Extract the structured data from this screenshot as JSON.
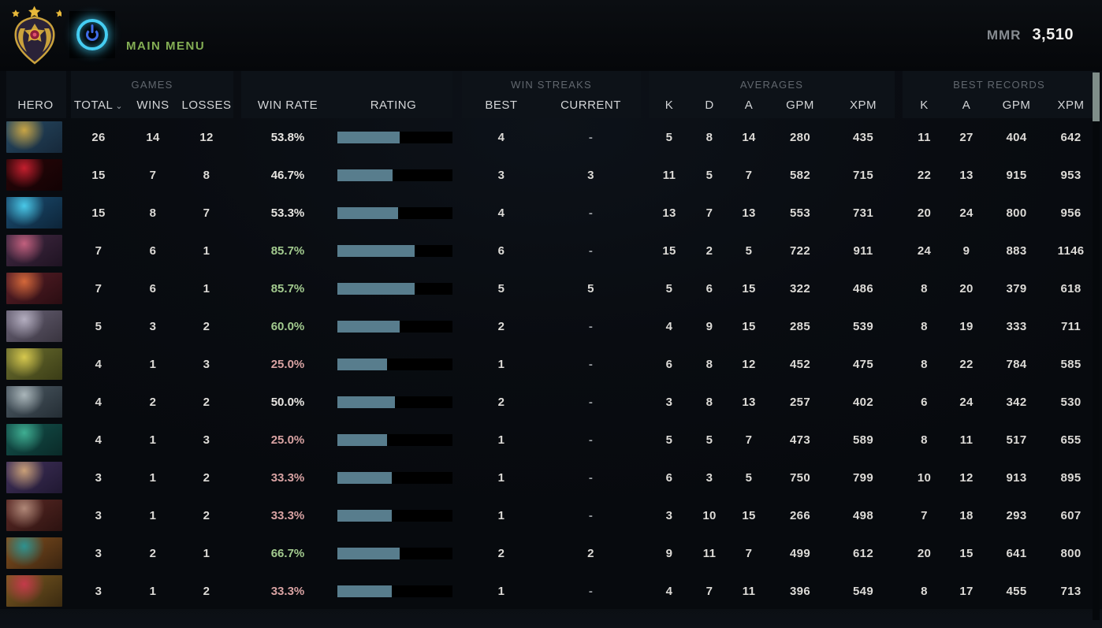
{
  "header": {
    "main_menu_label": "MAIN MENU",
    "mmr_label": "MMR",
    "mmr_value": "3,510",
    "accent_green": "#84ae54",
    "power_ring_color": "#45cdf2",
    "power_glyph_color": "#3f6ce8"
  },
  "table": {
    "hero_column_label": "HERO",
    "groups": {
      "games": {
        "label": "GAMES",
        "col_total": "TOTAL",
        "col_wins": "WINS",
        "col_losses": "LOSSES",
        "sorted_column": "TOTAL",
        "sort_indicator": "⌄"
      },
      "winrate": {
        "col_winrate": "WIN RATE",
        "col_rating": "RATING"
      },
      "streaks": {
        "label": "WIN STREAKS",
        "col_best": "BEST",
        "col_current": "CURRENT"
      },
      "averages": {
        "label": "AVERAGES",
        "col_k": "K",
        "col_d": "D",
        "col_a": "A",
        "col_gpm": "GPM",
        "col_xpm": "XPM"
      },
      "records": {
        "label": "BEST RECORDS",
        "col_k": "K",
        "col_a": "A",
        "col_gpm": "GPM",
        "col_xpm": "XPM"
      }
    },
    "colors": {
      "bar_fill": "#587d8d",
      "bar_track": "#000000",
      "winrate_positive": "#a3cb8f",
      "winrate_negative": "#d9a3a3",
      "winrate_neutral": "#e8e6e2"
    },
    "rows": [
      {
        "total": "26",
        "wins": "14",
        "losses": "12",
        "win_rate": "53.8%",
        "win_rate_tone": "neutral",
        "rating_pct": 54,
        "streak_best": "4",
        "streak_current": "-",
        "k": "5",
        "d": "8",
        "a": "14",
        "gpm": "280",
        "xpm": "435",
        "rec_k": "11",
        "rec_a": "27",
        "rec_gpm": "404",
        "rec_xpm": "642",
        "portrait": [
          "#274a63",
          "#16283a",
          "#c9a545"
        ]
      },
      {
        "total": "15",
        "wins": "7",
        "losses": "8",
        "win_rate": "46.7%",
        "win_rate_tone": "neutral",
        "rating_pct": 48,
        "streak_best": "3",
        "streak_current": "3",
        "k": "11",
        "d": "5",
        "a": "7",
        "gpm": "582",
        "xpm": "715",
        "rec_k": "22",
        "rec_a": "13",
        "rec_gpm": "915",
        "rec_xpm": "953",
        "portrait": [
          "#2a0608",
          "#120204",
          "#c41f2e"
        ]
      },
      {
        "total": "15",
        "wins": "8",
        "losses": "7",
        "win_rate": "53.3%",
        "win_rate_tone": "neutral",
        "rating_pct": 53,
        "streak_best": "4",
        "streak_current": "-",
        "k": "13",
        "d": "7",
        "a": "13",
        "gpm": "553",
        "xpm": "731",
        "rec_k": "20",
        "rec_a": "24",
        "rec_gpm": "800",
        "rec_xpm": "956",
        "portrait": [
          "#1b4f74",
          "#0d2438",
          "#49c8e8"
        ]
      },
      {
        "total": "7",
        "wins": "6",
        "losses": "1",
        "win_rate": "85.7%",
        "win_rate_tone": "positive",
        "rating_pct": 67,
        "streak_best": "6",
        "streak_current": "-",
        "k": "15",
        "d": "2",
        "a": "5",
        "gpm": "722",
        "xpm": "911",
        "rec_k": "24",
        "rec_a": "9",
        "rec_gpm": "883",
        "rec_xpm": "1146",
        "portrait": [
          "#432a44",
          "#1f1322",
          "#c2607e"
        ]
      },
      {
        "total": "7",
        "wins": "6",
        "losses": "1",
        "win_rate": "85.7%",
        "win_rate_tone": "positive",
        "rating_pct": 67,
        "streak_best": "5",
        "streak_current": "5",
        "k": "5",
        "d": "6",
        "a": "15",
        "gpm": "322",
        "xpm": "486",
        "rec_k": "8",
        "rec_a": "20",
        "rec_gpm": "379",
        "rec_xpm": "618",
        "portrait": [
          "#5a1f28",
          "#2a0d12",
          "#d4683a"
        ]
      },
      {
        "total": "5",
        "wins": "3",
        "losses": "2",
        "win_rate": "60.0%",
        "win_rate_tone": "positive",
        "rating_pct": 54,
        "streak_best": "2",
        "streak_current": "-",
        "k": "4",
        "d": "9",
        "a": "15",
        "gpm": "285",
        "xpm": "539",
        "rec_k": "8",
        "rec_a": "19",
        "rec_gpm": "333",
        "rec_xpm": "711",
        "portrait": [
          "#6a6377",
          "#39343f",
          "#b4aec0"
        ]
      },
      {
        "total": "4",
        "wins": "1",
        "losses": "3",
        "win_rate": "25.0%",
        "win_rate_tone": "negative",
        "rating_pct": 43,
        "streak_best": "1",
        "streak_current": "-",
        "k": "6",
        "d": "8",
        "a": "12",
        "gpm": "452",
        "xpm": "475",
        "rec_k": "8",
        "rec_a": "22",
        "rec_gpm": "784",
        "rec_xpm": "585",
        "portrait": [
          "#6d7030",
          "#3a3c16",
          "#d6c84e"
        ]
      },
      {
        "total": "4",
        "wins": "2",
        "losses": "2",
        "win_rate": "50.0%",
        "win_rate_tone": "neutral",
        "rating_pct": 50,
        "streak_best": "2",
        "streak_current": "-",
        "k": "3",
        "d": "8",
        "a": "13",
        "gpm": "257",
        "xpm": "402",
        "rec_k": "6",
        "rec_a": "24",
        "rec_gpm": "342",
        "rec_xpm": "530",
        "portrait": [
          "#4e5c66",
          "#242d34",
          "#aab6ba"
        ]
      },
      {
        "total": "4",
        "wins": "1",
        "losses": "3",
        "win_rate": "25.0%",
        "win_rate_tone": "negative",
        "rating_pct": 43,
        "streak_best": "1",
        "streak_current": "-",
        "k": "5",
        "d": "5",
        "a": "7",
        "gpm": "473",
        "xpm": "589",
        "rec_k": "8",
        "rec_a": "11",
        "rec_gpm": "517",
        "rec_xpm": "655",
        "portrait": [
          "#14544e",
          "#0a2a28",
          "#3fae92"
        ]
      },
      {
        "total": "3",
        "wins": "1",
        "losses": "2",
        "win_rate": "33.3%",
        "win_rate_tone": "negative",
        "rating_pct": 47,
        "streak_best": "1",
        "streak_current": "-",
        "k": "6",
        "d": "3",
        "a": "5",
        "gpm": "750",
        "xpm": "799",
        "rec_k": "10",
        "rec_a": "12",
        "rec_gpm": "913",
        "rec_xpm": "895",
        "portrait": [
          "#41325c",
          "#201832",
          "#caa078"
        ]
      },
      {
        "total": "3",
        "wins": "1",
        "losses": "2",
        "win_rate": "33.3%",
        "win_rate_tone": "negative",
        "rating_pct": 47,
        "streak_best": "1",
        "streak_current": "-",
        "k": "3",
        "d": "10",
        "a": "15",
        "gpm": "266",
        "xpm": "498",
        "rec_k": "7",
        "rec_a": "18",
        "rec_gpm": "293",
        "rec_xpm": "607",
        "portrait": [
          "#5c2a26",
          "#2c1210",
          "#b08878"
        ]
      },
      {
        "total": "3",
        "wins": "2",
        "losses": "1",
        "win_rate": "66.7%",
        "win_rate_tone": "positive",
        "rating_pct": 54,
        "streak_best": "2",
        "streak_current": "2",
        "k": "9",
        "d": "11",
        "a": "7",
        "gpm": "499",
        "xpm": "612",
        "rec_k": "20",
        "rec_a": "15",
        "rec_gpm": "641",
        "rec_xpm": "800",
        "portrait": [
          "#83501f",
          "#3a2410",
          "#2e9290"
        ]
      },
      {
        "total": "3",
        "wins": "1",
        "losses": "2",
        "win_rate": "33.3%",
        "win_rate_tone": "negative",
        "rating_pct": 47,
        "streak_best": "1",
        "streak_current": "-",
        "k": "4",
        "d": "7",
        "a": "11",
        "gpm": "396",
        "xpm": "549",
        "rec_k": "8",
        "rec_a": "17",
        "rec_gpm": "455",
        "rec_xpm": "713",
        "portrait": [
          "#7c5a22",
          "#3a2a10",
          "#c43a4a"
        ]
      }
    ],
    "partial_row": {
      "portrait": [
        "#4a1c14",
        "#200a06",
        "#d0903a"
      ]
    }
  }
}
